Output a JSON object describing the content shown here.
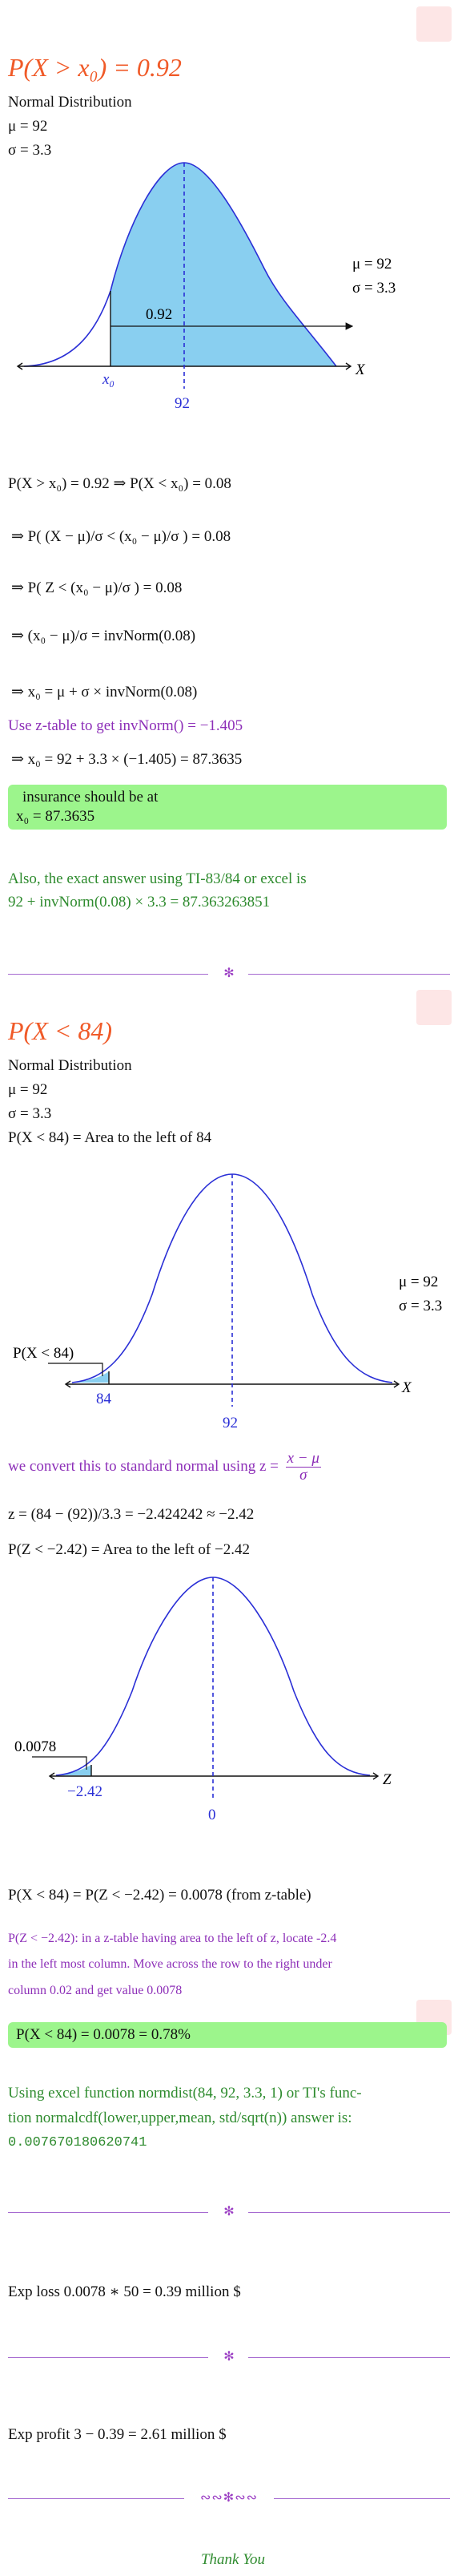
{
  "section1": {
    "title": "P(X > x₀) = 0.92",
    "dist_label": "Normal Distribution",
    "mu": "μ = 92",
    "sigma": "σ = 3.3",
    "graph": {
      "area_label": "0.92",
      "x0_label": "x₀",
      "mean_label": "92",
      "axis_label": "X",
      "mu_side": "μ = 92",
      "sigma_side": "σ = 3.3"
    },
    "steps": [
      "P(X > x₀) = 0.92 ⇒ P(X < x₀) = 0.08",
      "⇒ P( (X − μ)/σ < (x₀ − μ)/σ ) = 0.08",
      "⇒ P( Z < (x₀ − μ)/σ ) = 0.08",
      "⇒ (x₀ − μ)/σ = invNorm(0.08)",
      "⇒ x₀ = μ + σ × invNorm(0.08)"
    ],
    "ztable_note": "Use z-table to get invNorm() = −1.405",
    "compute": "⇒ x₀ = 92 + 3.3 × (−1.405) = 87.3635",
    "answer_line1": "insurance should be at",
    "answer_line2": "x₀ = 87.3635",
    "exact_line1": "Also, the exact answer using TI-83/84 or excel is",
    "exact_line2": "92 + invNorm(0.08) × 3.3 = 87.363263851"
  },
  "section2": {
    "title": "P(X < 84)",
    "dist_label": "Normal Distribution",
    "mu": "μ = 92",
    "sigma": "σ = 3.3",
    "area_desc": "P(X < 84) = Area to the left of 84",
    "graph1": {
      "area_label": "P(X < 84)",
      "x_label": "84",
      "mean_label": "92",
      "axis_label": "X",
      "mu_side": "μ = 92",
      "sigma_side": "σ = 3.3"
    },
    "convert_note": "we convert this to standard normal using z =",
    "convert_frac_num": "x − μ",
    "convert_frac_den": "σ",
    "z_calc": "z = (84 − (92))/3.3 = −2.424242 ≈ −2.42",
    "z_area_desc": "P(Z < −2.42) = Area to the left of −2.42",
    "graph2": {
      "area_label": "0.0078",
      "z_label": "−2.42",
      "mean_label": "0",
      "axis_label": "Z"
    },
    "result_line": "P(X < 84) = P(Z < −2.42) = 0.0078 (from z-table)",
    "note_line1": "P(Z < −2.42): in a z-table having area to the left of z, locate -2.4",
    "note_line2": "in the left most column.  Move across the row to the right under",
    "note_line3": "column 0.02 and get value 0.0078",
    "answer_box": "P(X < 84) = 0.0078 = 0.78%",
    "excel_line1": "Using excel function normdist(84, 92, 3.3, 1) or TI's func-",
    "excel_line2": "tion normalcdf(lower,upper,mean, std/sqrt(n)) answer is:",
    "excel_line3": "0.007670180620741"
  },
  "exp_loss": "Exp loss 0.0078 ∗ 50 = 0.39 million $",
  "exp_profit": "Exp profit 3 − 0.39 = 2.61 million $",
  "thank_you": "Thank You",
  "colors": {
    "title": "#f05a28",
    "purple": "#8d2fb8",
    "green": "#2e8b2e",
    "highlight": "#9cf58c",
    "curve": "#2a2fd6",
    "fill": "#89cff0"
  }
}
